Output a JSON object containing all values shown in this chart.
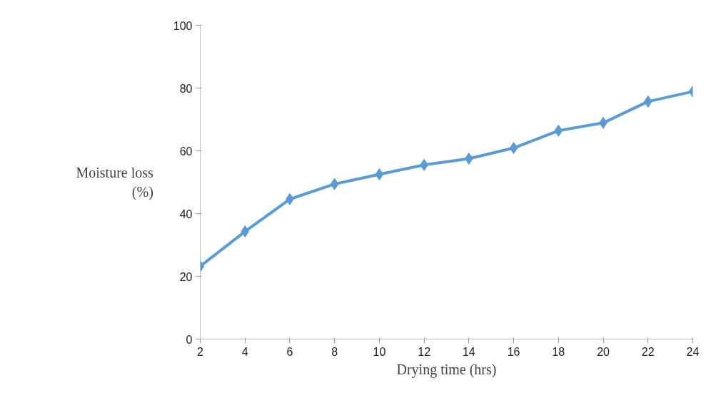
{
  "chart_data": {
    "type": "line",
    "xlabel": "Drying time (hrs)",
    "ylabel": "Moisture loss\n(%)",
    "x": [
      2,
      4,
      6,
      8,
      10,
      12,
      14,
      16,
      18,
      20,
      22,
      24
    ],
    "series": [
      {
        "color": "#5b9bd5",
        "values": [
          23.2,
          34.3,
          44.6,
          49.4,
          52.5,
          55.5,
          57.5,
          60.9,
          66.4,
          68.9,
          75.7,
          78.9
        ]
      }
    ],
    "xlim": [
      2,
      24
    ],
    "ylim": [
      0,
      100
    ],
    "xticks": [
      2,
      4,
      6,
      8,
      10,
      12,
      14,
      16,
      18,
      20,
      22,
      24
    ],
    "yticks": [
      0,
      20,
      40,
      60,
      80,
      100
    ],
    "grid": false,
    "marker": "diamond",
    "line_style": "solid"
  }
}
